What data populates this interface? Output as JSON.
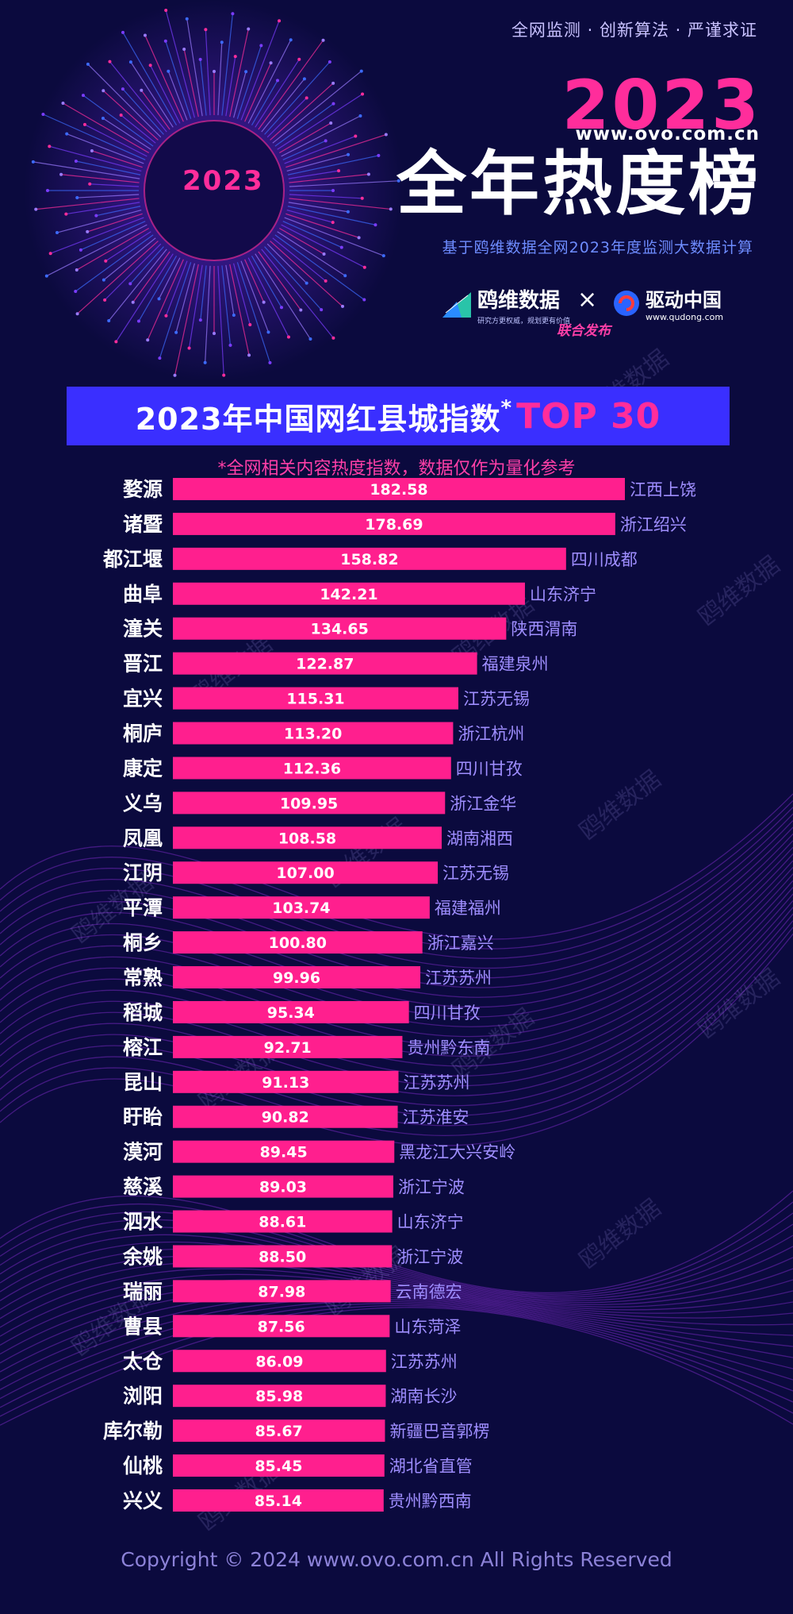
{
  "header": {
    "tagline": "全网监测 · 创新算法 · 严谨求证",
    "year": "2023",
    "site": "www.ovo.com.cn",
    "title": "全年热度榜",
    "subtitle": "基于鸥维数据全网2023年度监测大数据计算",
    "emblem_text": "2023"
  },
  "partners": {
    "left_name": "鸥维数据",
    "left_slogan": "研究方更权威，规划更有价值",
    "cross": "×",
    "right_name": "驱动中国",
    "right_url": "www.qudong.com",
    "joint": "联合发布"
  },
  "banner": {
    "title": "2023年中国网红县城指数",
    "star": "*",
    "top": "TOP 30"
  },
  "note": "*全网相关内容热度指数，数据仅作为量化参考",
  "watermark": "鸥维数据",
  "footer": {
    "copyright": "Copyright © 2024  www.ovo.com.cn All Rights Reserved"
  },
  "colors": {
    "background": "#0b0a3e",
    "bar": "#ff1f8e",
    "accent": "#ff2d9b",
    "banner": "#3a2fff",
    "province": "#9f8eff"
  },
  "chart_data": {
    "type": "bar",
    "orientation": "horizontal",
    "categories": [
      "婺源",
      "诸暨",
      "都江堰",
      "曲阜",
      "潼关",
      "晋江",
      "宜兴",
      "桐庐",
      "康定",
      "义乌",
      "凤凰",
      "江阴",
      "平潭",
      "桐乡",
      "常熟",
      "稻城",
      "榕江",
      "昆山",
      "盱眙",
      "漠河",
      "慈溪",
      "泗水",
      "余姚",
      "瑞丽",
      "曹县",
      "太仓",
      "浏阳",
      "库尔勒",
      "仙桃",
      "兴义"
    ],
    "values": [
      182.58,
      178.69,
      158.82,
      142.21,
      134.65,
      122.87,
      115.31,
      113.2,
      112.36,
      109.95,
      108.58,
      107.0,
      103.74,
      100.8,
      99.96,
      95.34,
      92.71,
      91.13,
      90.82,
      89.45,
      89.03,
      88.61,
      88.5,
      87.98,
      87.56,
      86.09,
      85.98,
      85.67,
      85.45,
      85.14
    ],
    "value_labels": [
      "182.58",
      "178.69",
      "158.82",
      "142.21",
      "134.65",
      "122.87",
      "115.31",
      "113.20",
      "112.36",
      "109.95",
      "108.58",
      "107.00",
      "103.74",
      "100.80",
      "99.96",
      "95.34",
      "92.71",
      "91.13",
      "90.82",
      "89.45",
      "89.03",
      "88.61",
      "88.50",
      "87.98",
      "87.56",
      "86.09",
      "85.98",
      "85.67",
      "85.45",
      "85.14"
    ],
    "provinces": [
      "江西上饶",
      "浙江绍兴",
      "四川成都",
      "山东济宁",
      "陕西渭南",
      "福建泉州",
      "江苏无锡",
      "浙江杭州",
      "四川甘孜",
      "浙江金华",
      "湖南湘西",
      "江苏无锡",
      "福建福州",
      "浙江嘉兴",
      "江苏苏州",
      "四川甘孜",
      "贵州黔东南",
      "江苏苏州",
      "江苏淮安",
      "黑龙江大兴安岭",
      "浙江宁波",
      "山东济宁",
      "浙江宁波",
      "云南德宏",
      "山东菏泽",
      "江苏苏州",
      "湖南长沙",
      "新疆巴音郭楞",
      "湖北省直管",
      "贵州黔西南"
    ],
    "xlim": [
      0,
      182.58
    ]
  }
}
